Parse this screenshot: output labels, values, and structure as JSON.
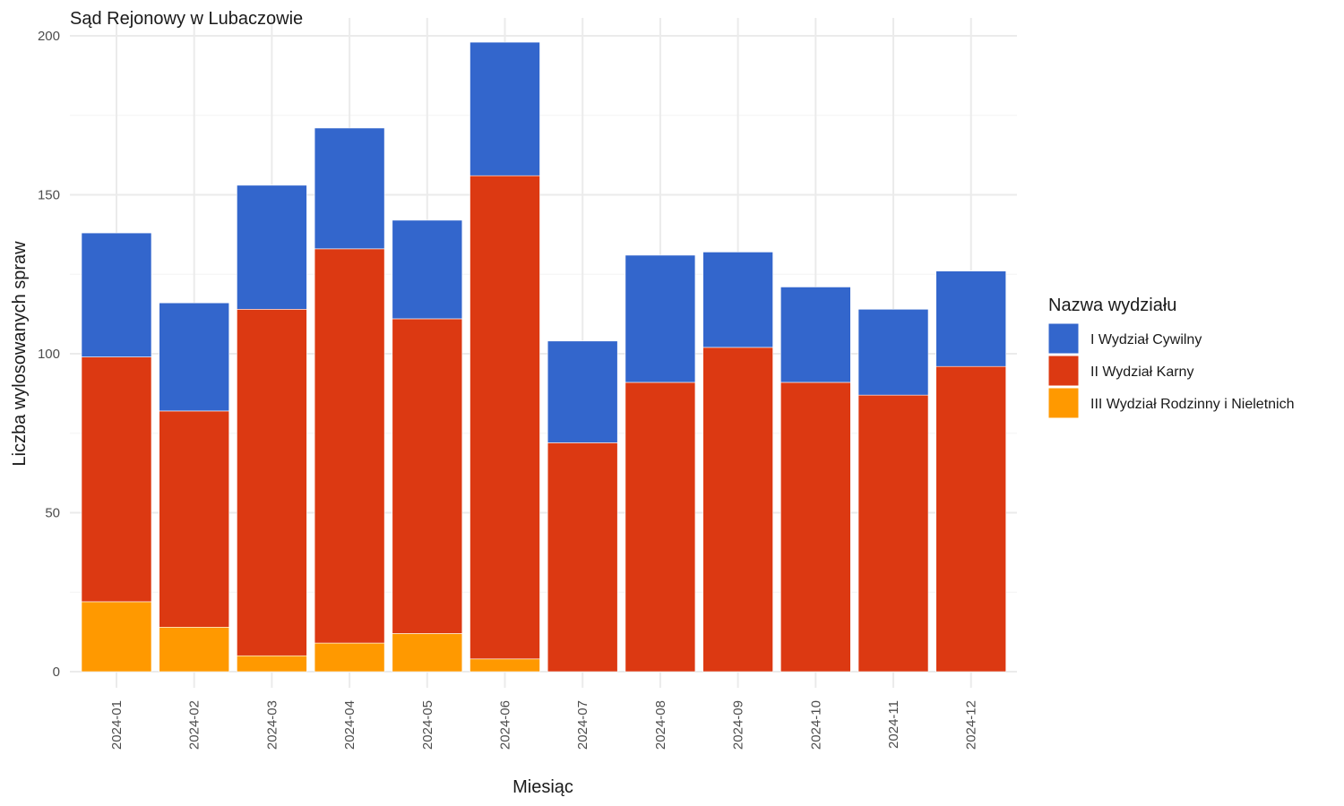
{
  "chart_data": {
    "type": "bar",
    "stacked": true,
    "title": "Sąd Rejonowy w Lubaczowie",
    "xlabel": "Miesiąc",
    "ylabel": "Liczba wylosowanych spraw",
    "ylim": [
      0,
      200
    ],
    "yticks": [
      "0",
      "50",
      "100",
      "150",
      "200"
    ],
    "categories": [
      "2024-01",
      "2024-02",
      "2024-03",
      "2024-04",
      "2024-05",
      "2024-06",
      "2024-07",
      "2024-08",
      "2024-09",
      "2024-10",
      "2024-11",
      "2024-12"
    ],
    "legend_title": "Nazwa wydziału",
    "legend_position": "right",
    "grid": true,
    "series": [
      {
        "name": "I Wydział Cywilny",
        "color": "#3366cc",
        "values": [
          39,
          34,
          39,
          38,
          31,
          42,
          32,
          40,
          30,
          30,
          27,
          30
        ]
      },
      {
        "name": "II Wydział Karny",
        "color": "#dc3912",
        "values": [
          77,
          68,
          109,
          124,
          99,
          152,
          72,
          91,
          102,
          91,
          87,
          96
        ]
      },
      {
        "name": "III Wydział Rodzinny i Nieletnich",
        "color": "#ff9900",
        "values": [
          22,
          14,
          5,
          9,
          12,
          4,
          0,
          0,
          0,
          0,
          0,
          0
        ]
      }
    ]
  }
}
